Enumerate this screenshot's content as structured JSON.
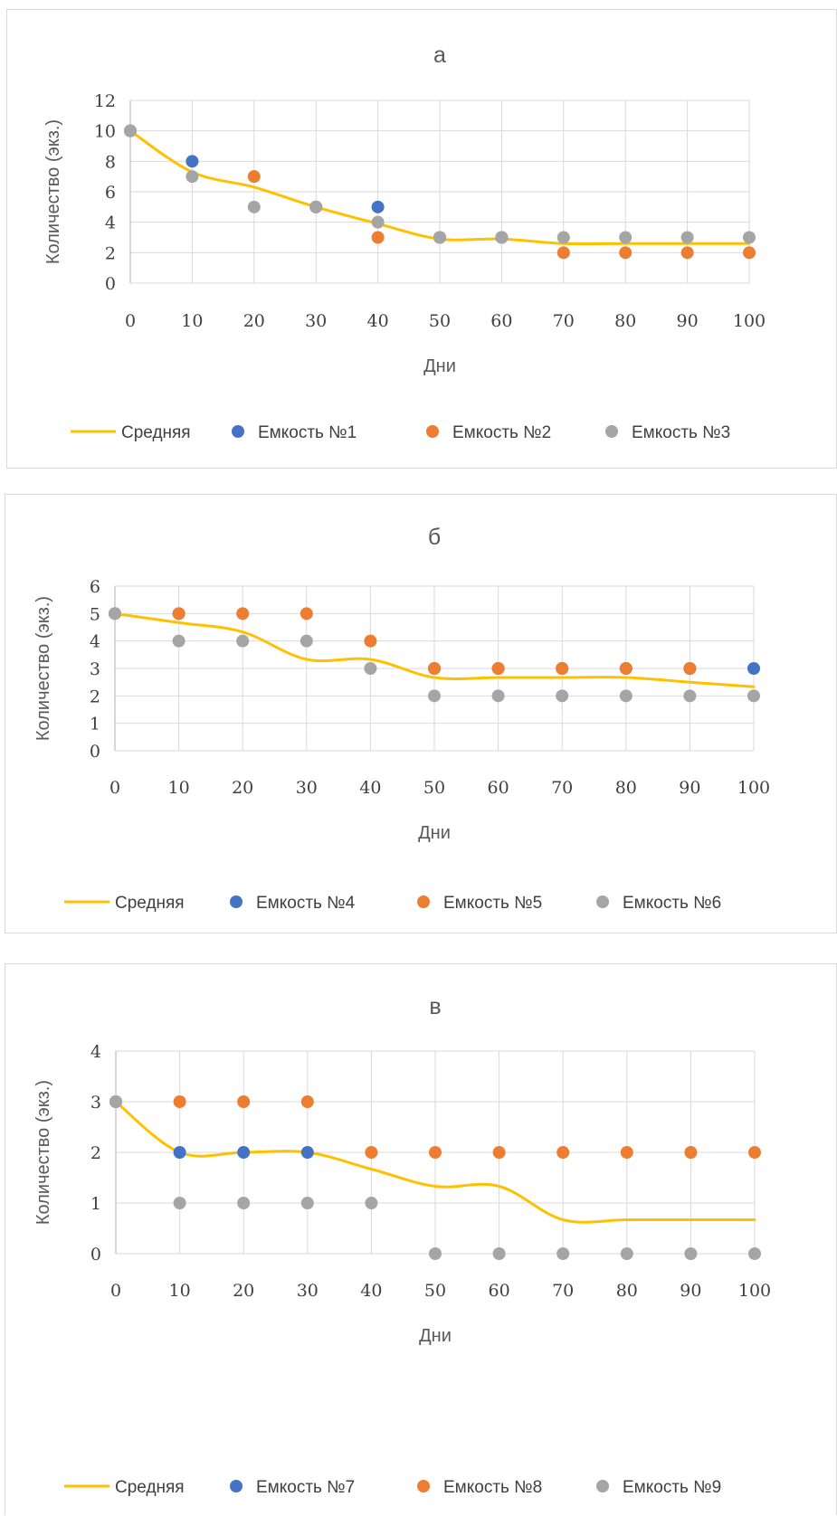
{
  "chart_data": [
    {
      "type": "scatter",
      "title": "а",
      "xlabel": "Дни",
      "ylabel": "Количество (экз.)",
      "x": [
        0,
        10,
        20,
        30,
        40,
        50,
        60,
        70,
        80,
        90,
        100
      ],
      "xlim": [
        0,
        100
      ],
      "ylim": [
        0,
        12
      ],
      "yticks": [
        0,
        2,
        4,
        6,
        8,
        10,
        12
      ],
      "grid": true,
      "legend_position": "bottom",
      "series": [
        {
          "name": "Средняя",
          "type": "line",
          "color": "#FFC000",
          "values": [
            10,
            7.3,
            6.3,
            5,
            3.9,
            2.9,
            2.9,
            2.6,
            2.6,
            2.6,
            2.6
          ]
        },
        {
          "name": "Емкость №1",
          "type": "scatter",
          "color": "#4472C4",
          "values": [
            10,
            8,
            null,
            5,
            5,
            3,
            3,
            null,
            null,
            null,
            null
          ]
        },
        {
          "name": "Емкость №2",
          "type": "scatter",
          "color": "#ED7D31",
          "values": [
            10,
            null,
            7,
            5,
            3,
            3,
            3,
            2,
            2,
            2,
            2
          ]
        },
        {
          "name": "Емкость №3",
          "type": "scatter",
          "color": "#A5A5A5",
          "values": [
            10,
            7,
            5,
            5,
            4,
            3,
            3,
            3,
            3,
            3,
            3
          ]
        }
      ]
    },
    {
      "type": "scatter",
      "title": "б",
      "xlabel": "Дни",
      "ylabel": "Количество (экз.)",
      "x": [
        0,
        10,
        20,
        30,
        40,
        50,
        60,
        70,
        80,
        90,
        100
      ],
      "xlim": [
        0,
        100
      ],
      "ylim": [
        0,
        6
      ],
      "yticks": [
        0,
        1,
        2,
        3,
        4,
        5,
        6
      ],
      "grid": true,
      "legend_position": "bottom",
      "series": [
        {
          "name": "Средняя",
          "type": "line",
          "color": "#FFC000",
          "values": [
            5,
            4.67,
            4.33,
            3.33,
            3.33,
            2.67,
            2.67,
            2.67,
            2.67,
            2.5,
            2.33
          ]
        },
        {
          "name": "Емкость №4",
          "type": "scatter",
          "color": "#4472C4",
          "values": [
            5,
            5,
            null,
            null,
            null,
            3,
            3,
            3,
            3,
            3,
            3
          ]
        },
        {
          "name": "Емкость №5",
          "type": "scatter",
          "color": "#ED7D31",
          "values": [
            5,
            5,
            5,
            5,
            4,
            3,
            3,
            3,
            3,
            3,
            null
          ]
        },
        {
          "name": "Емкость №6",
          "type": "scatter",
          "color": "#A5A5A5",
          "values": [
            5,
            4,
            4,
            4,
            3,
            2,
            2,
            2,
            2,
            2,
            2
          ]
        }
      ]
    },
    {
      "type": "scatter",
      "title": "в",
      "xlabel": "Дни",
      "ylabel": "Количество (экз.)",
      "x": [
        0,
        10,
        20,
        30,
        40,
        50,
        60,
        70,
        80,
        90,
        100
      ],
      "xlim": [
        0,
        100
      ],
      "ylim": [
        0,
        4
      ],
      "yticks": [
        0,
        1,
        2,
        3,
        4
      ],
      "grid": true,
      "legend_position": "bottom",
      "series": [
        {
          "name": "Средняя",
          "type": "line",
          "color": "#FFC000",
          "values": [
            3,
            2,
            2,
            2,
            1.67,
            1.33,
            1.33,
            0.67,
            0.67,
            0.67,
            0.67
          ]
        },
        {
          "name": "Емкость №7",
          "type": "scatter",
          "color": "#4472C4",
          "values": [
            3,
            2,
            2,
            2,
            null,
            null,
            null,
            null,
            null,
            null,
            null
          ]
        },
        {
          "name": "Емкость №8",
          "type": "scatter",
          "color": "#ED7D31",
          "values": [
            3,
            3,
            3,
            3,
            2,
            2,
            2,
            2,
            2,
            2,
            2
          ]
        },
        {
          "name": "Емкость №9",
          "type": "scatter",
          "color": "#A5A5A5",
          "values": [
            3,
            1,
            1,
            1,
            1,
            0,
            0,
            0,
            0,
            0,
            0
          ]
        }
      ]
    }
  ]
}
